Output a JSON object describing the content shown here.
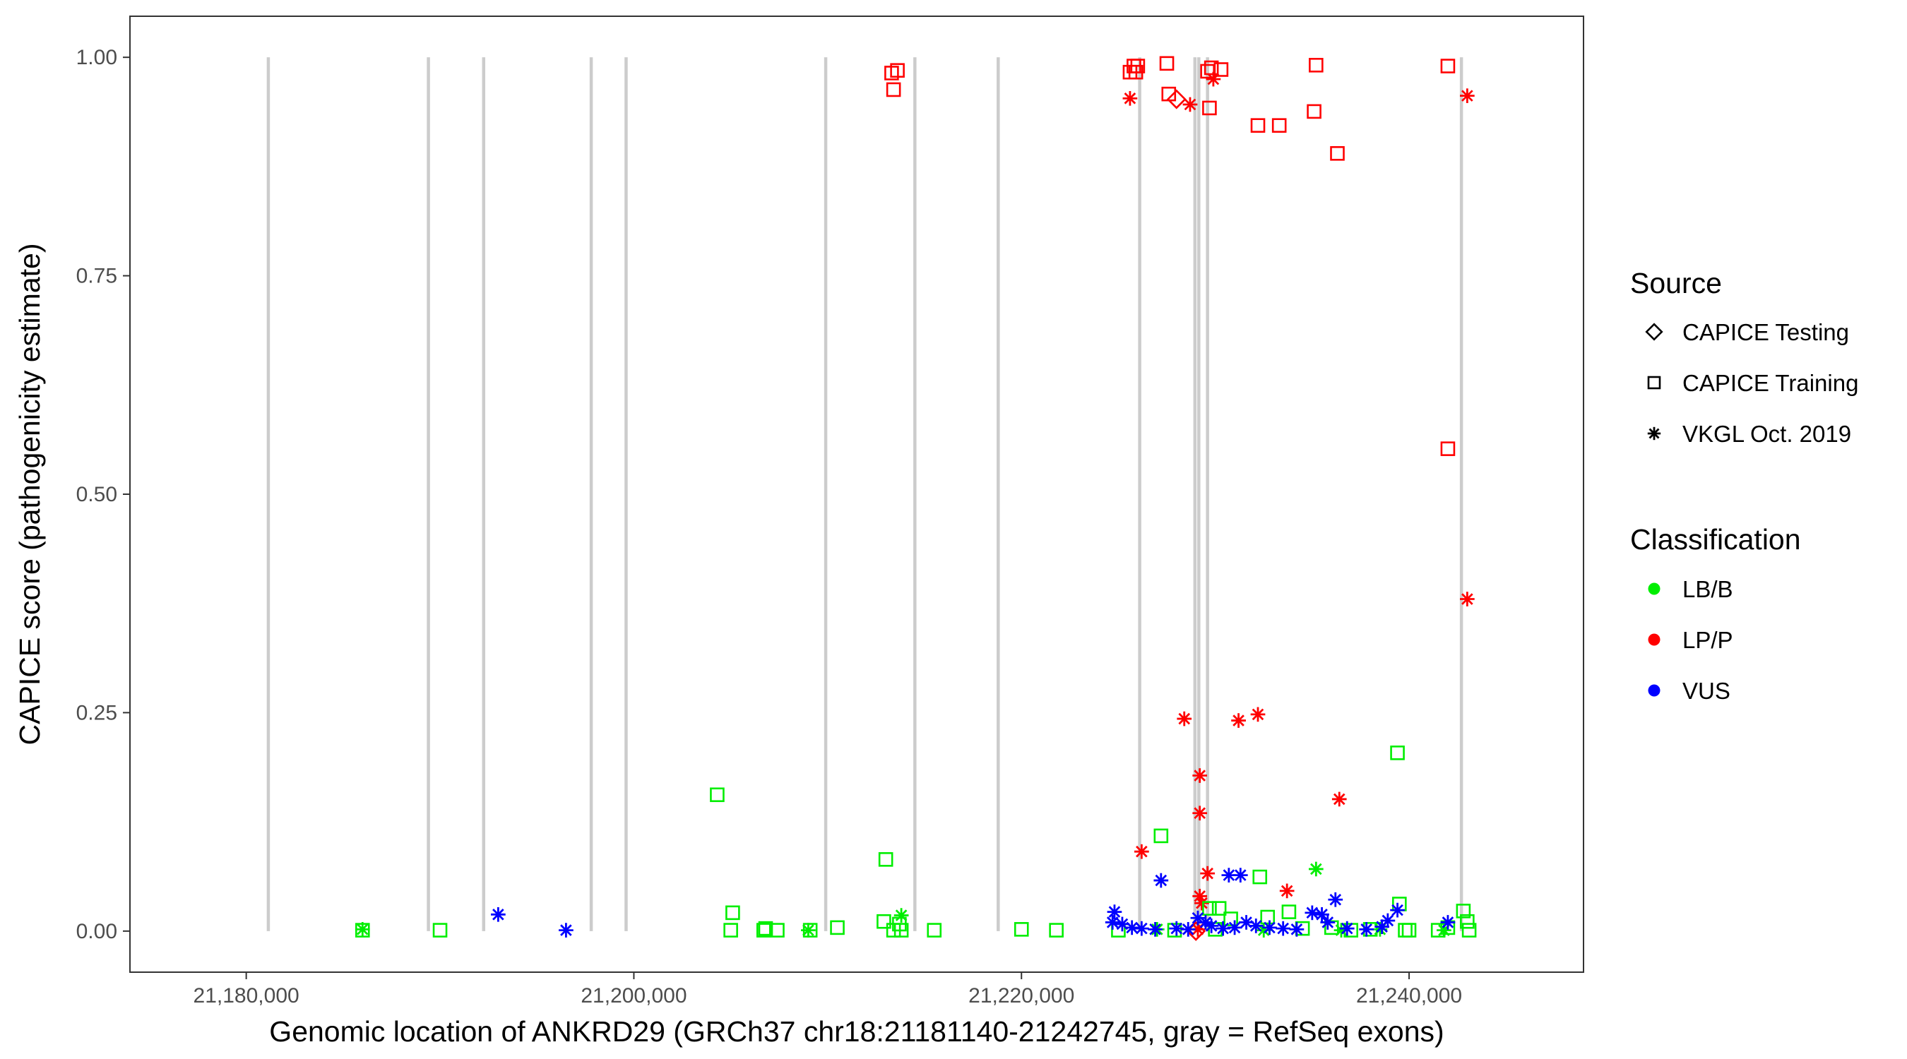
{
  "chart_data": {
    "type": "scatter",
    "title": "",
    "xlabel": "Genomic location of ANKRD29 (GRCh37 chr18:21181140-21242745, gray = RefSeq exons)",
    "ylabel": "CAPICE score (pathogenicity estimate)",
    "xlim": [
      21174000,
      21249000
    ],
    "ylim": [
      -0.047,
      1.047
    ],
    "x_ticks": [
      21180000,
      21200000,
      21220000,
      21240000
    ],
    "x_tick_labels": [
      "21,180,000",
      "21,200,000",
      "21,220,000",
      "21,240,000"
    ],
    "y_ticks": [
      0,
      0.25,
      0.5,
      0.75,
      1.0
    ],
    "y_tick_labels": [
      "0.00",
      "0.25",
      "0.50",
      "0.75",
      "1.00"
    ],
    "grid": false,
    "exon_color": "#cccccc",
    "exons": [
      21181140,
      21189400,
      21192250,
      21197800,
      21199600,
      21209900,
      21214500,
      21218800,
      21226100,
      21228950,
      21229150,
      21229600,
      21242700
    ],
    "legends": [
      {
        "title": "Source",
        "entries": [
          {
            "label": "CAPICE Testing",
            "shape": "diamond"
          },
          {
            "label": "CAPICE Training",
            "shape": "square"
          },
          {
            "label": "VKGL Oct. 2019",
            "shape": "asterisk"
          }
        ]
      },
      {
        "title": "Classification",
        "entries": [
          {
            "label": "LB/B",
            "color": "#00ee00"
          },
          {
            "label": "LP/P",
            "color": "#ff0000"
          },
          {
            "label": "VUS",
            "color": "#0000ff"
          }
        ]
      }
    ],
    "legend_position": "right",
    "colors": {
      "LB/B": "#00ee00",
      "LP/P": "#ff0000",
      "VUS": "#0000ff"
    },
    "series": [
      {
        "source": "CAPICE Training",
        "classification": "LP/P",
        "points": [
          [
            21213300,
            0.982
          ],
          [
            21213600,
            0.985
          ],
          [
            21213400,
            0.963
          ],
          [
            21225600,
            0.983
          ],
          [
            21225800,
            0.99
          ],
          [
            21226000,
            0.99
          ],
          [
            21225900,
            0.983
          ],
          [
            21227500,
            0.993
          ],
          [
            21227600,
            0.958
          ],
          [
            21229600,
            0.984
          ],
          [
            21229800,
            0.988
          ],
          [
            21230300,
            0.986
          ],
          [
            21229700,
            0.942
          ],
          [
            21232200,
            0.922
          ],
          [
            21233300,
            0.922
          ],
          [
            21235200,
            0.991
          ],
          [
            21235100,
            0.938
          ],
          [
            21236300,
            0.89
          ],
          [
            21242000,
            0.99
          ],
          [
            21242000,
            0.552
          ]
        ]
      },
      {
        "source": "VKGL Oct. 2019",
        "classification": "LP/P",
        "points": [
          [
            21225600,
            0.953
          ],
          [
            21228700,
            0.946
          ],
          [
            21229900,
            0.975
          ],
          [
            21243000,
            0.956
          ],
          [
            21243000,
            0.38
          ],
          [
            21228400,
            0.243
          ],
          [
            21232200,
            0.248
          ],
          [
            21231200,
            0.241
          ],
          [
            21229200,
            0.178
          ],
          [
            21236400,
            0.151
          ],
          [
            21229200,
            0.135
          ],
          [
            21226200,
            0.091
          ],
          [
            21229600,
            0.066
          ],
          [
            21233700,
            0.046
          ],
          [
            21229200,
            0.04
          ],
          [
            21229300,
            0.032
          ],
          [
            21229100,
            0.002
          ]
        ]
      },
      {
        "source": "CAPICE Testing",
        "classification": "LP/P",
        "points": [
          [
            21228000,
            0.952
          ],
          [
            21229000,
            0.0
          ]
        ]
      },
      {
        "source": "CAPICE Training",
        "classification": "LB/B",
        "points": [
          [
            21186000,
            0.001
          ],
          [
            21190000,
            0.001
          ],
          [
            21204300,
            0.156
          ],
          [
            21205100,
            0.021
          ],
          [
            21205000,
            0.001
          ],
          [
            21206800,
            0.003
          ],
          [
            21206700,
            0.001
          ],
          [
            21207400,
            0.001
          ],
          [
            21209100,
            0.001
          ],
          [
            21210500,
            0.004
          ],
          [
            21213000,
            0.082
          ],
          [
            21212900,
            0.011
          ],
          [
            21213700,
            0.008
          ],
          [
            21213400,
            0.001
          ],
          [
            21213800,
            0.001
          ],
          [
            21215500,
            0.001
          ],
          [
            21220000,
            0.002
          ],
          [
            21221800,
            0.001
          ],
          [
            21225000,
            0.001
          ],
          [
            21227200,
            0.109
          ],
          [
            21232300,
            0.062
          ],
          [
            21229700,
            0.026
          ],
          [
            21230200,
            0.026
          ],
          [
            21230800,
            0.014
          ],
          [
            21233800,
            0.022
          ],
          [
            21232700,
            0.016
          ],
          [
            21227900,
            0.001
          ],
          [
            21230000,
            0.002
          ],
          [
            21234500,
            0.003
          ],
          [
            21236000,
            0.004
          ],
          [
            21237000,
            0.001
          ],
          [
            21238000,
            0.002
          ],
          [
            21239400,
            0.204
          ],
          [
            21239500,
            0.031
          ],
          [
            21239800,
            0.001
          ],
          [
            21240000,
            0.001
          ],
          [
            21241500,
            0.001
          ],
          [
            21242800,
            0.023
          ],
          [
            21243000,
            0.011
          ],
          [
            21243100,
            0.001
          ],
          [
            21242000,
            0.004
          ]
        ]
      },
      {
        "source": "VKGL Oct. 2019",
        "classification": "LB/B",
        "points": [
          [
            21186000,
            0.002
          ],
          [
            21209000,
            0.001
          ],
          [
            21213800,
            0.018
          ],
          [
            21235200,
            0.071
          ],
          [
            21227000,
            0.002
          ],
          [
            21232500,
            0.001
          ],
          [
            21236500,
            0.001
          ],
          [
            21238500,
            0.002
          ],
          [
            21241800,
            0.001
          ]
        ]
      },
      {
        "source": "VKGL Oct. 2019",
        "classification": "VUS",
        "points": [
          [
            21193000,
            0.019
          ],
          [
            21196500,
            0.001
          ],
          [
            21227200,
            0.058
          ],
          [
            21230700,
            0.064
          ],
          [
            21231300,
            0.064
          ],
          [
            21236200,
            0.036
          ],
          [
            21235500,
            0.019
          ],
          [
            21235000,
            0.021
          ],
          [
            21239400,
            0.024
          ],
          [
            21224800,
            0.022
          ],
          [
            21224700,
            0.01
          ],
          [
            21225200,
            0.008
          ],
          [
            21225700,
            0.004
          ],
          [
            21226200,
            0.003
          ],
          [
            21226900,
            0.002
          ],
          [
            21228000,
            0.003
          ],
          [
            21228600,
            0.002
          ],
          [
            21229100,
            0.015
          ],
          [
            21229500,
            0.01
          ],
          [
            21229800,
            0.006
          ],
          [
            21230400,
            0.003
          ],
          [
            21231000,
            0.004
          ],
          [
            21231600,
            0.01
          ],
          [
            21232100,
            0.006
          ],
          [
            21232800,
            0.004
          ],
          [
            21233500,
            0.003
          ],
          [
            21234200,
            0.002
          ],
          [
            21235800,
            0.01
          ],
          [
            21236800,
            0.003
          ],
          [
            21237800,
            0.002
          ],
          [
            21238600,
            0.005
          ],
          [
            21238900,
            0.012
          ],
          [
            21242000,
            0.01
          ]
        ]
      }
    ]
  }
}
